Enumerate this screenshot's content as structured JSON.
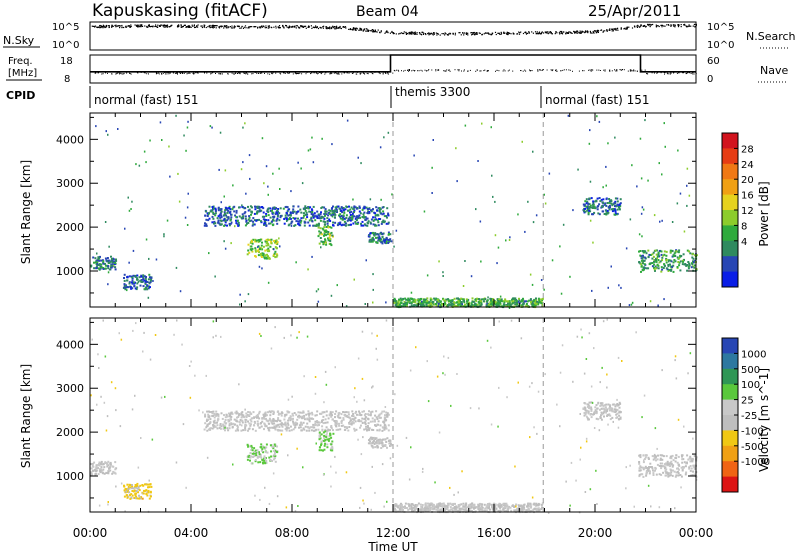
{
  "header": {
    "station": "Kapuskasing (fitACF)",
    "beam": "Beam 04",
    "date": "25/Apr/2011"
  },
  "top_panel": {
    "left_label": "N.Sky",
    "right_label": "N.Search",
    "left_ticks": [
      "10^5",
      "10^0"
    ],
    "right_ticks": [
      "10^5",
      "10^0"
    ]
  },
  "freq_panel": {
    "left_label_1": "Freq.",
    "left_label_2": "[MHz]",
    "right_label": "Nave",
    "left_ticks": [
      "18",
      "8"
    ],
    "right_ticks": [
      "60",
      "0"
    ]
  },
  "cpid": {
    "label": "CPID",
    "segments": [
      {
        "label": "normal (fast) 151"
      },
      {
        "label": "themis 3300"
      },
      {
        "label": "normal (fast) 151"
      }
    ]
  },
  "power_panel": {
    "ylabel": "Slant Range [km]",
    "yticks": [
      "4000",
      "3000",
      "2000",
      "1000"
    ],
    "colorbar_label": "Power [dB]",
    "colorbar_ticks": [
      "28",
      "24",
      "20",
      "16",
      "12",
      "8",
      "4"
    ],
    "colors": [
      "#0a1ee6",
      "#2846b4",
      "#2f8a5f",
      "#2faa3c",
      "#8ccc2c",
      "#e6d21e",
      "#f0a014",
      "#f07814",
      "#e63c14",
      "#d2141e"
    ]
  },
  "velocity_panel": {
    "ylabel": "Slant Range [km]",
    "yticks": [
      "4000",
      "3000",
      "2000",
      "1000"
    ],
    "colorbar_label": "Velocity [m s^-1]",
    "colorbar_ticks": [
      "1000",
      "500",
      "100",
      "25",
      "-25",
      "-100",
      "-500",
      "-1000"
    ],
    "colors": [
      "#2846b4",
      "#2d78a0",
      "#2f9655",
      "#5ac83c",
      "#c8c8c8",
      "#bebebe",
      "#f0c814",
      "#f0a014",
      "#f06414",
      "#dc1414"
    ]
  },
  "xaxis": {
    "label": "Time UT",
    "ticks": [
      "00:00",
      "04:00",
      "08:00",
      "12:00",
      "16:00",
      "20:00",
      "00:00"
    ]
  },
  "chart_data": [
    {
      "type": "line",
      "title": "N.Sky / N.Search",
      "ylim_log10": [
        0,
        5
      ],
      "series": [
        {
          "name": "N.Sky",
          "x_hours": [
            0,
            2,
            4,
            6,
            8,
            10,
            12,
            14,
            16,
            18,
            20,
            22,
            24
          ],
          "values_log10": [
            4.6,
            4.7,
            4.7,
            4.5,
            4.6,
            4.4,
            3.4,
            3.2,
            3.3,
            3.4,
            3.6,
            4.8,
            4.8
          ]
        }
      ]
    },
    {
      "type": "line",
      "title": "Freq. / Nave",
      "series": [
        {
          "name": "Freq.",
          "x_hours": [
            0,
            11.9,
            11.9,
            21.8,
            21.8,
            24
          ],
          "values": [
            12,
            12,
            18,
            18,
            12,
            12
          ]
        },
        {
          "name": "Nave",
          "x_hours": [
            0,
            12,
            12,
            22,
            22,
            24
          ],
          "values": [
            22,
            22,
            28,
            28,
            22,
            22
          ]
        }
      ],
      "ylim_left": [
        8,
        18
      ],
      "ylim_right": [
        0,
        60
      ]
    },
    {
      "type": "heatmap",
      "title": "Power [dB]",
      "xlim_hours": [
        0,
        24
      ],
      "ylim_km": [
        180,
        4600
      ],
      "clim": [
        0,
        32
      ],
      "patches": [
        {
          "t0": 0.0,
          "t1": 1.0,
          "r0": 1050,
          "r1": 1350,
          "value": 6
        },
        {
          "t0": 1.3,
          "t1": 2.4,
          "r0": 600,
          "r1": 950,
          "value": 5
        },
        {
          "t0": 4.5,
          "t1": 11.8,
          "r0": 2050,
          "r1": 2500,
          "value": 5
        },
        {
          "t0": 6.2,
          "t1": 7.4,
          "r0": 1300,
          "r1": 1750,
          "value": 14
        },
        {
          "t0": 9.0,
          "t1": 9.6,
          "r0": 1600,
          "r1": 2050,
          "value": 12
        },
        {
          "t0": 11.0,
          "t1": 11.9,
          "r0": 1650,
          "r1": 1900,
          "value": 6
        },
        {
          "t0": 12.0,
          "t1": 17.9,
          "r0": 200,
          "r1": 400,
          "value": 10
        },
        {
          "t0": 19.5,
          "t1": 21.0,
          "r0": 2300,
          "r1": 2700,
          "value": 5
        },
        {
          "t0": 21.7,
          "t1": 24.0,
          "r0": 1000,
          "r1": 1500,
          "value": 9
        }
      ]
    },
    {
      "type": "heatmap",
      "title": "Velocity [m s^-1]",
      "xlim_hours": [
        0,
        24
      ],
      "ylim_km": [
        180,
        4600
      ],
      "clim": [
        -1000,
        1000
      ],
      "patches": [
        {
          "t0": 0.0,
          "t1": 1.0,
          "r0": 1050,
          "r1": 1350,
          "value": 0
        },
        {
          "t0": 1.3,
          "t1": 2.4,
          "r0": 500,
          "r1": 850,
          "value": -300
        },
        {
          "t0": 4.5,
          "t1": 11.8,
          "r0": 2050,
          "r1": 2500,
          "value": 0
        },
        {
          "t0": 6.2,
          "t1": 7.4,
          "r0": 1300,
          "r1": 1750,
          "value": 200
        },
        {
          "t0": 9.0,
          "t1": 9.6,
          "r0": 1600,
          "r1": 2050,
          "value": 300
        },
        {
          "t0": 11.0,
          "t1": 11.9,
          "r0": 1650,
          "r1": 1900,
          "value": 0
        },
        {
          "t0": 12.0,
          "t1": 17.9,
          "r0": 200,
          "r1": 400,
          "value": 0
        },
        {
          "t0": 19.5,
          "t1": 21.0,
          "r0": 2300,
          "r1": 2700,
          "value": 0
        },
        {
          "t0": 21.7,
          "t1": 24.0,
          "r0": 1000,
          "r1": 1500,
          "value": 0
        }
      ]
    }
  ]
}
